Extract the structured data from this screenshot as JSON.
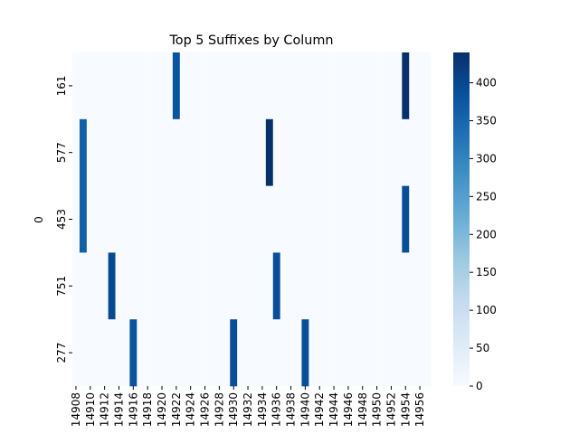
{
  "chart_data": {
    "type": "heatmap",
    "title": "Top 5 Suffixes by Column",
    "ylabel": "0",
    "x": [
      14908,
      null,
      14910,
      null,
      14912,
      null,
      14914,
      null,
      14916,
      null,
      14918,
      null,
      14920,
      null,
      14922,
      null,
      14924,
      null,
      14926,
      null,
      14928,
      null,
      14930,
      null,
      14932,
      null,
      14934,
      null,
      14936,
      null,
      14938,
      null,
      14940,
      null,
      14942,
      null,
      14944,
      null,
      14946,
      null,
      14948,
      null,
      14950,
      null,
      14952,
      null,
      14954,
      null,
      14956,
      null
    ],
    "categories": [
      "161",
      "577",
      "453",
      "751",
      "277"
    ],
    "values": [
      [
        0,
        0,
        0,
        0,
        0,
        0,
        0,
        0,
        0,
        0,
        0,
        0,
        0,
        0,
        380,
        0,
        0,
        0,
        0,
        0,
        0,
        0,
        0,
        0,
        0,
        0,
        0,
        0,
        0,
        0,
        0,
        0,
        0,
        0,
        0,
        0,
        0,
        0,
        0,
        0,
        0,
        0,
        0,
        0,
        0,
        0,
        440,
        0,
        0,
        0
      ],
      [
        0,
        360,
        0,
        0,
        0,
        0,
        0,
        0,
        0,
        0,
        0,
        0,
        0,
        0,
        0,
        0,
        0,
        0,
        0,
        0,
        0,
        0,
        0,
        0,
        0,
        0,
        0,
        440,
        0,
        0,
        0,
        0,
        0,
        0,
        0,
        0,
        0,
        0,
        0,
        0,
        0,
        0,
        0,
        0,
        0,
        0,
        0,
        0,
        0,
        0
      ],
      [
        0,
        360,
        0,
        0,
        0,
        0,
        0,
        0,
        0,
        0,
        0,
        0,
        0,
        0,
        0,
        0,
        0,
        0,
        0,
        0,
        0,
        0,
        0,
        0,
        0,
        0,
        0,
        0,
        0,
        0,
        0,
        0,
        0,
        0,
        0,
        0,
        0,
        0,
        0,
        0,
        0,
        0,
        0,
        0,
        0,
        0,
        390,
        0,
        0,
        0
      ],
      [
        0,
        0,
        0,
        0,
        0,
        400,
        0,
        0,
        0,
        0,
        0,
        0,
        0,
        0,
        0,
        0,
        0,
        0,
        0,
        0,
        0,
        0,
        0,
        0,
        0,
        0,
        0,
        0,
        390,
        0,
        0,
        0,
        0,
        0,
        0,
        0,
        0,
        0,
        0,
        0,
        0,
        0,
        0,
        0,
        0,
        0,
        0,
        0,
        0,
        0
      ],
      [
        0,
        0,
        0,
        0,
        0,
        0,
        0,
        0,
        380,
        0,
        0,
        0,
        0,
        0,
        0,
        0,
        0,
        0,
        0,
        0,
        0,
        0,
        390,
        0,
        0,
        0,
        0,
        0,
        0,
        0,
        0,
        0,
        390,
        0,
        0,
        0,
        0,
        0,
        0,
        0,
        0,
        0,
        0,
        0,
        0,
        0,
        0,
        0,
        0,
        0
      ]
    ],
    "colormap": "Blues",
    "clim": [
      0,
      440
    ],
    "cticks": [
      0,
      50,
      100,
      150,
      200,
      250,
      300,
      350,
      400
    ]
  }
}
